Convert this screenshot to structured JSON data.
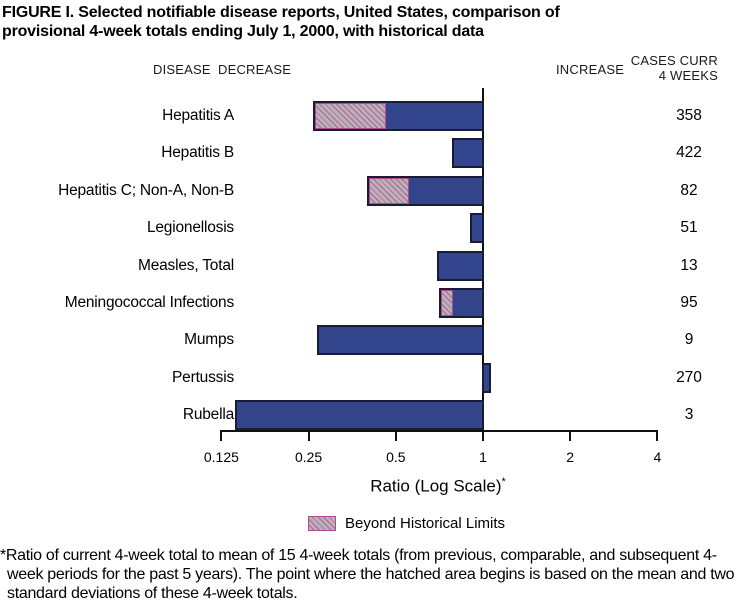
{
  "title": {
    "line1": "FIGURE I. Selected notifiable disease reports, United States, comparison of",
    "line2": "provisional 4-week totals ending July 1, 2000, with historical data"
  },
  "headers": {
    "disease": "DISEASE",
    "decrease": "DECREASE",
    "increase": "INCREASE",
    "cases_line1": "CASES CURR",
    "cases_line2": "4 WEEKS"
  },
  "chart_data": {
    "type": "bar",
    "orientation": "horizontal",
    "scale": "log2",
    "title": "FIGURE I. Selected notifiable disease reports, United States, comparison of provisional 4-week totals ending July 1, 2000, with historical data",
    "axis": {
      "label": "Ratio (Log Scale)",
      "label_superscript": "*",
      "ticks": [
        0.125,
        0.25,
        0.5,
        1,
        2,
        4
      ],
      "tick_labels": [
        "0.125",
        "0.25",
        "0.5",
        "1",
        "2",
        "4"
      ],
      "reference_value": 1,
      "range": [
        0.125,
        4
      ]
    },
    "rows": [
      {
        "disease": "Hepatitis A",
        "cases": 358,
        "ratio": 0.26,
        "beyond_limit_start": 0.46
      },
      {
        "disease": "Hepatitis B",
        "cases": 422,
        "ratio": 0.79,
        "beyond_limit_start": null
      },
      {
        "disease": "Hepatitis C; Non-A, Non-B",
        "cases": 82,
        "ratio": 0.4,
        "beyond_limit_start": 0.55
      },
      {
        "disease": "Legionellosis",
        "cases": 51,
        "ratio": 0.91,
        "beyond_limit_start": null
      },
      {
        "disease": "Measles, Total",
        "cases": 13,
        "ratio": 0.7,
        "beyond_limit_start": null
      },
      {
        "disease": "Meningococcal Infections",
        "cases": 95,
        "ratio": 0.71,
        "beyond_limit_start": 0.78
      },
      {
        "disease": "Mumps",
        "cases": 9,
        "ratio": 0.27,
        "beyond_limit_start": null
      },
      {
        "disease": "Pertussis",
        "cases": 270,
        "ratio": 1.06,
        "beyond_limit_start": null
      },
      {
        "disease": "Rubella",
        "cases": 3,
        "ratio": 0.14,
        "beyond_limit_start": null
      }
    ]
  },
  "legend": {
    "label": "Beyond Historical Limits"
  },
  "footnote": {
    "text": "*Ratio of current 4-week total to mean of 15 4-week totals (from previous, comparable, and subsequent 4-week periods for the past 5 years). The point where the hatched area begins is based on the mean and two standard deviations of these 4-week totals."
  },
  "colors": {
    "background": "#ffffff",
    "bar_fill": "#32458c",
    "bar_border": "#191d33",
    "hatch_fill": "#b5b5b5",
    "hatch_line": "#c158a2",
    "hatch_border": "#b04b93",
    "text": "#000000"
  }
}
